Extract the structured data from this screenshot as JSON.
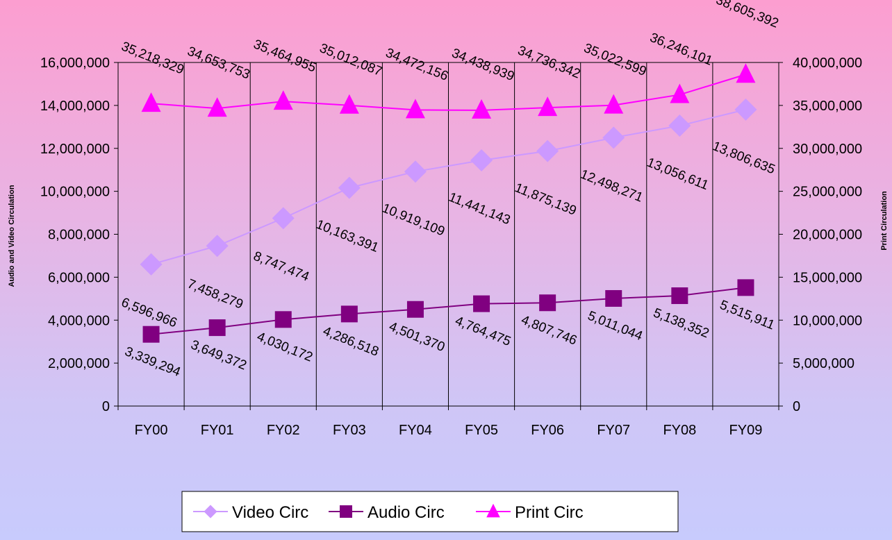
{
  "chart_data": {
    "type": "line",
    "categories": [
      "FY00",
      "FY01",
      "FY02",
      "FY03",
      "FY04",
      "FY05",
      "FY06",
      "FY07",
      "FY08",
      "FY09"
    ],
    "ylabel_left": "Audio and Video Circulation",
    "ylabel_right": "Print Circulation",
    "ylim_left": [
      0,
      16000000
    ],
    "ylim_right": [
      0,
      40000000
    ],
    "yticks_left": [
      "0",
      "2,000,000",
      "4,000,000",
      "6,000,000",
      "8,000,000",
      "10,000,000",
      "12,000,000",
      "14,000,000",
      "16,000,000"
    ],
    "yticks_right": [
      "0",
      "5,000,000",
      "10,000,000",
      "15,000,000",
      "20,000,000",
      "25,000,000",
      "30,000,000",
      "35,000,000",
      "40,000,000"
    ],
    "grid": "vertical",
    "legend": "bottom-center",
    "series": [
      {
        "name": "Video Circ",
        "axis": "left",
        "marker": "diamond",
        "color": "#cc99ff",
        "values": [
          6596966,
          7458279,
          8747474,
          10163391,
          10919109,
          11441143,
          11875139,
          12498271,
          13056611,
          13806635
        ],
        "labels": [
          "6,596,966",
          "7,458,279",
          "8,747,474",
          "10,163,391",
          "10,919,109",
          "11,441,143",
          "11,875,139",
          "12,498,271",
          "13,056,611",
          "13,806,635"
        ]
      },
      {
        "name": "Audio Circ",
        "axis": "left",
        "marker": "square",
        "color": "#800080",
        "values": [
          3339294,
          3649372,
          4030172,
          4286518,
          4501370,
          4764475,
          4807746,
          5011044,
          5138352,
          5515911
        ],
        "labels": [
          "3,339,294",
          "3,649,372",
          "4,030,172",
          "4,286,518",
          "4,501,370",
          "4,764,475",
          "4,807,746",
          "5,011,044",
          "5,138,352",
          "5,515,911"
        ]
      },
      {
        "name": "Print Circ",
        "axis": "right",
        "marker": "triangle",
        "color": "#ff00ff",
        "values": [
          35218329,
          34653753,
          35464955,
          35012087,
          34472156,
          34438939,
          34736342,
          35022599,
          36246101,
          38605392
        ],
        "labels": [
          "35,218,329",
          "34,653,753",
          "35,464,955",
          "35,012,087",
          "34,472,156",
          "34,438,939",
          "34,736,342",
          "35,022,599",
          "36,246,101",
          "38,605,392"
        ]
      }
    ]
  }
}
